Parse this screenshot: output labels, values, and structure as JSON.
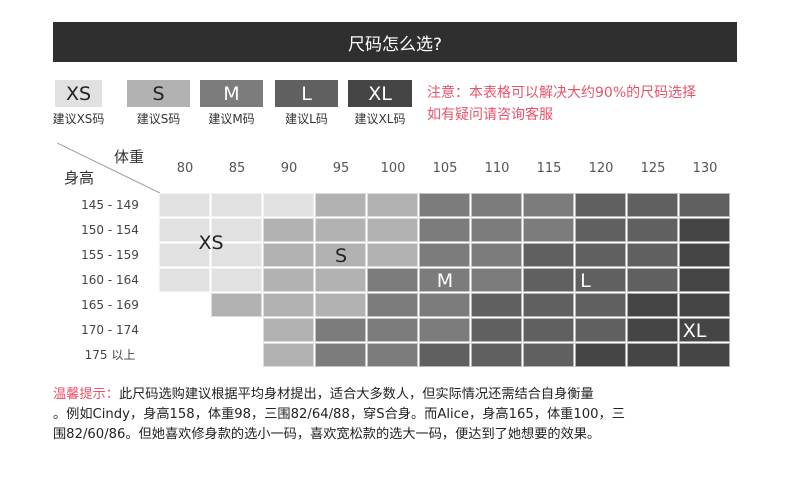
{
  "header": {
    "title": "尺码怎么选?"
  },
  "legend": [
    {
      "size": "XS",
      "caption": "建议XS码",
      "color": "#e1e1e1",
      "text_color": "#222"
    },
    {
      "size": "S",
      "caption": "建议S码",
      "color": "#b2b2b2",
      "text_color": "#222"
    },
    {
      "size": "M",
      "caption": "建议M码",
      "color": "#7c7c7c",
      "text_color": "#fff"
    },
    {
      "size": "L",
      "caption": "建议L码",
      "color": "#606060",
      "text_color": "#fff"
    },
    {
      "size": "XL",
      "caption": "建议XL码",
      "color": "#454545",
      "text_color": "#fff"
    }
  ],
  "note": {
    "line1": "注意：本表格可以解决大约90%的尺码选择",
    "line2": "如有疑问请咨询客服"
  },
  "table": {
    "weight_label": "体重",
    "height_label": "身高",
    "weights": [
      "80",
      "85",
      "90",
      "95",
      "100",
      "105",
      "110",
      "115",
      "120",
      "125",
      "130"
    ],
    "heights": [
      "145 - 149",
      "150 - 154",
      "155 - 159",
      "160 - 164",
      "165 - 169",
      "170 - 174",
      "175 以上"
    ],
    "grid": [
      [
        "XS",
        "XS",
        "XS",
        "S",
        "S",
        "M",
        "M",
        "M",
        "L",
        "L",
        "L"
      ],
      [
        "XS",
        "XS",
        "S",
        "S",
        "S",
        "M",
        "M",
        "M",
        "L",
        "L",
        "XL"
      ],
      [
        "XS",
        "XS",
        "S",
        "S",
        "S",
        "M",
        "M",
        "L",
        "L",
        "L",
        "XL"
      ],
      [
        "XS",
        "XS",
        "S",
        "S",
        "M",
        "M",
        "M",
        "L",
        "L",
        "L",
        "XL"
      ],
      [
        null,
        "S",
        "S",
        "S",
        "M",
        "M",
        "L",
        "L",
        "L",
        "XL",
        "XL"
      ],
      [
        null,
        null,
        "S",
        "M",
        "M",
        "M",
        "L",
        "L",
        "L",
        "XL",
        "XL"
      ],
      [
        null,
        null,
        "S",
        "M",
        "M",
        "L",
        "L",
        "L",
        "XL",
        "XL",
        "XL"
      ]
    ],
    "size_labels": [
      {
        "text": "XS",
        "color": "#222"
      },
      {
        "text": "S",
        "color": "#222"
      },
      {
        "text": "M",
        "color": "#fff"
      },
      {
        "text": "L",
        "color": "#fff"
      },
      {
        "text": "XL",
        "color": "#fff"
      }
    ]
  },
  "tip": {
    "prefix": "温馨提示：",
    "line1": "此尺码选购建议根据平均身材提出，适合大多数人，但实际情况还需结合自身衡量",
    "line2": "。例如Cindy，身高158，体重98，三围82/64/88，穿S合身。而Alice，身高165，体重100，三",
    "line3": "围82/60/86。但她喜欢修身款的选小一码，喜欢宽松款的选大一码，便达到了她想要的效果。"
  }
}
